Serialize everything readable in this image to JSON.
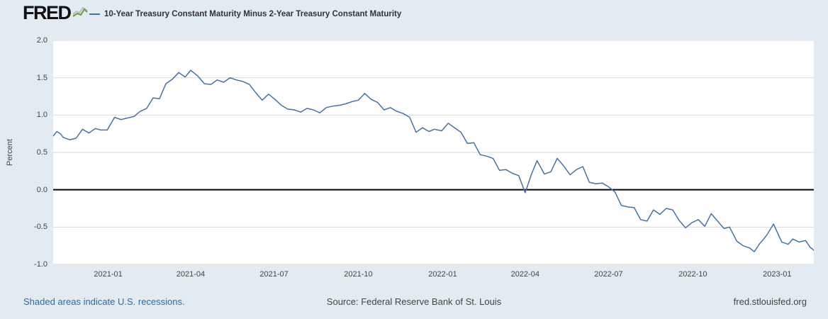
{
  "header": {
    "logo": "FRED",
    "legend": {
      "series_label": "10-Year Treasury Constant Maturity Minus 2-Year Treasury Constant Maturity"
    }
  },
  "footer": {
    "recession_note": "Shaded areas indicate U.S. recessions.",
    "source": "Source: Federal Reserve Bank of St. Louis",
    "site": "fred.stlouisfed.org"
  },
  "chart_data": {
    "type": "line",
    "title": "10-Year Treasury Constant Maturity Minus 2-Year Treasury Constant Maturity",
    "ylabel": "Percent",
    "ylim": [
      -1.0,
      2.0
    ],
    "yticks": [
      2.0,
      1.5,
      1.0,
      0.5,
      0.0,
      -0.5,
      -1.0
    ],
    "xticks": [
      {
        "date": "2021-01-01",
        "label": "2021-01"
      },
      {
        "date": "2021-04-01",
        "label": "2021-04"
      },
      {
        "date": "2021-07-01",
        "label": "2021-07"
      },
      {
        "date": "2021-10-01",
        "label": "2021-10"
      },
      {
        "date": "2022-01-01",
        "label": "2022-01"
      },
      {
        "date": "2022-04-01",
        "label": "2022-04"
      },
      {
        "date": "2022-07-01",
        "label": "2022-07"
      },
      {
        "date": "2022-10-01",
        "label": "2022-10"
      },
      {
        "date": "2023-01-01",
        "label": "2023-01"
      }
    ],
    "line_color": "#4572a7",
    "grid_color": "#d9d9d9",
    "zero_line": true,
    "zero_line_color": "#000000",
    "legend_position": "top",
    "series": [
      {
        "name": "10-Year Treasury Constant Maturity Minus 2-Year Treasury Constant Maturity",
        "points": [
          [
            "2020-11-02",
            0.72
          ],
          [
            "2020-11-06",
            0.78
          ],
          [
            "2020-11-10",
            0.75
          ],
          [
            "2020-11-13",
            0.7
          ],
          [
            "2020-11-20",
            0.67
          ],
          [
            "2020-11-27",
            0.69
          ],
          [
            "2020-12-04",
            0.81
          ],
          [
            "2020-12-11",
            0.76
          ],
          [
            "2020-12-18",
            0.82
          ],
          [
            "2020-12-24",
            0.8
          ],
          [
            "2020-12-31",
            0.8
          ],
          [
            "2021-01-08",
            0.97
          ],
          [
            "2021-01-15",
            0.94
          ],
          [
            "2021-01-22",
            0.96
          ],
          [
            "2021-01-29",
            0.98
          ],
          [
            "2021-02-05",
            1.05
          ],
          [
            "2021-02-12",
            1.09
          ],
          [
            "2021-02-19",
            1.23
          ],
          [
            "2021-02-26",
            1.22
          ],
          [
            "2021-03-05",
            1.42
          ],
          [
            "2021-03-12",
            1.48
          ],
          [
            "2021-03-19",
            1.57
          ],
          [
            "2021-03-26",
            1.51
          ],
          [
            "2021-04-01",
            1.6
          ],
          [
            "2021-04-09",
            1.52
          ],
          [
            "2021-04-16",
            1.42
          ],
          [
            "2021-04-23",
            1.41
          ],
          [
            "2021-04-30",
            1.47
          ],
          [
            "2021-05-07",
            1.44
          ],
          [
            "2021-05-14",
            1.5
          ],
          [
            "2021-05-21",
            1.47
          ],
          [
            "2021-05-28",
            1.45
          ],
          [
            "2021-06-04",
            1.41
          ],
          [
            "2021-06-11",
            1.3
          ],
          [
            "2021-06-18",
            1.2
          ],
          [
            "2021-06-25",
            1.28
          ],
          [
            "2021-07-02",
            1.21
          ],
          [
            "2021-07-09",
            1.13
          ],
          [
            "2021-07-16",
            1.08
          ],
          [
            "2021-07-23",
            1.07
          ],
          [
            "2021-07-30",
            1.04
          ],
          [
            "2021-08-06",
            1.09
          ],
          [
            "2021-08-13",
            1.07
          ],
          [
            "2021-08-20",
            1.03
          ],
          [
            "2021-08-27",
            1.1
          ],
          [
            "2021-09-03",
            1.12
          ],
          [
            "2021-09-10",
            1.13
          ],
          [
            "2021-09-17",
            1.15
          ],
          [
            "2021-09-24",
            1.18
          ],
          [
            "2021-10-01",
            1.2
          ],
          [
            "2021-10-08",
            1.29
          ],
          [
            "2021-10-15",
            1.21
          ],
          [
            "2021-10-22",
            1.17
          ],
          [
            "2021-10-29",
            1.07
          ],
          [
            "2021-11-05",
            1.1
          ],
          [
            "2021-11-12",
            1.05
          ],
          [
            "2021-11-19",
            1.02
          ],
          [
            "2021-11-26",
            0.97
          ],
          [
            "2021-12-03",
            0.77
          ],
          [
            "2021-12-10",
            0.83
          ],
          [
            "2021-12-17",
            0.78
          ],
          [
            "2021-12-23",
            0.81
          ],
          [
            "2021-12-31",
            0.79
          ],
          [
            "2022-01-07",
            0.89
          ],
          [
            "2022-01-14",
            0.83
          ],
          [
            "2022-01-21",
            0.77
          ],
          [
            "2022-01-28",
            0.62
          ],
          [
            "2022-02-04",
            0.63
          ],
          [
            "2022-02-11",
            0.47
          ],
          [
            "2022-02-18",
            0.45
          ],
          [
            "2022-02-25",
            0.42
          ],
          [
            "2022-03-04",
            0.26
          ],
          [
            "2022-03-11",
            0.27
          ],
          [
            "2022-03-18",
            0.22
          ],
          [
            "2022-03-25",
            0.19
          ],
          [
            "2022-04-01",
            -0.04
          ],
          [
            "2022-04-08",
            0.21
          ],
          [
            "2022-04-14",
            0.39
          ],
          [
            "2022-04-22",
            0.21
          ],
          [
            "2022-04-29",
            0.24
          ],
          [
            "2022-05-06",
            0.42
          ],
          [
            "2022-05-13",
            0.32
          ],
          [
            "2022-05-20",
            0.2
          ],
          [
            "2022-05-27",
            0.27
          ],
          [
            "2022-06-03",
            0.31
          ],
          [
            "2022-06-10",
            0.1
          ],
          [
            "2022-06-17",
            0.08
          ],
          [
            "2022-06-24",
            0.09
          ],
          [
            "2022-07-01",
            0.04
          ],
          [
            "2022-07-08",
            -0.03
          ],
          [
            "2022-07-15",
            -0.21
          ],
          [
            "2022-07-22",
            -0.23
          ],
          [
            "2022-07-29",
            -0.24
          ],
          [
            "2022-08-05",
            -0.4
          ],
          [
            "2022-08-12",
            -0.42
          ],
          [
            "2022-08-19",
            -0.27
          ],
          [
            "2022-08-26",
            -0.33
          ],
          [
            "2022-09-02",
            -0.25
          ],
          [
            "2022-09-09",
            -0.27
          ],
          [
            "2022-09-16",
            -0.41
          ],
          [
            "2022-09-23",
            -0.51
          ],
          [
            "2022-09-30",
            -0.44
          ],
          [
            "2022-10-07",
            -0.4
          ],
          [
            "2022-10-14",
            -0.49
          ],
          [
            "2022-10-21",
            -0.32
          ],
          [
            "2022-10-28",
            -0.42
          ],
          [
            "2022-11-04",
            -0.52
          ],
          [
            "2022-11-10",
            -0.5
          ],
          [
            "2022-11-18",
            -0.69
          ],
          [
            "2022-11-25",
            -0.75
          ],
          [
            "2022-12-02",
            -0.78
          ],
          [
            "2022-12-07",
            -0.83
          ],
          [
            "2022-12-13",
            -0.72
          ],
          [
            "2022-12-16",
            -0.68
          ],
          [
            "2022-12-21",
            -0.6
          ],
          [
            "2022-12-28",
            -0.46
          ],
          [
            "2023-01-03",
            -0.62
          ],
          [
            "2023-01-06",
            -0.7
          ],
          [
            "2023-01-13",
            -0.73
          ],
          [
            "2023-01-18",
            -0.66
          ],
          [
            "2023-01-25",
            -0.7
          ],
          [
            "2023-02-01",
            -0.68
          ],
          [
            "2023-02-06",
            -0.77
          ],
          [
            "2023-02-10",
            -0.81
          ]
        ]
      }
    ]
  }
}
